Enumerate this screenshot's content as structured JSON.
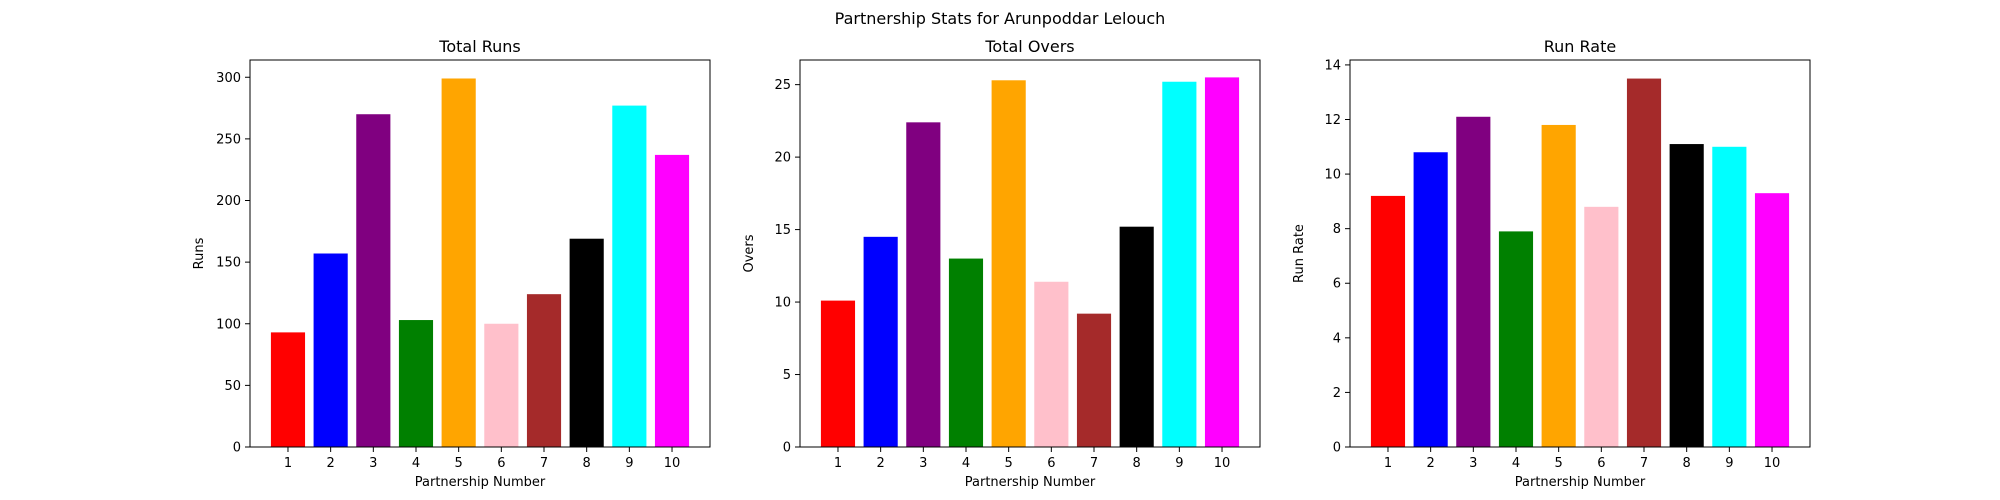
{
  "figure": {
    "suptitle": "Partnership Stats for Arunpoddar Lelouch"
  },
  "chart_data": [
    {
      "type": "bar",
      "title": "Total Runs",
      "xlabel": "Partnership Number",
      "ylabel": "Runs",
      "categories": [
        "1",
        "2",
        "3",
        "4",
        "5",
        "6",
        "7",
        "8",
        "9",
        "10"
      ],
      "values": [
        93,
        157,
        270,
        103,
        299,
        100,
        124,
        169,
        277,
        237
      ],
      "colors": [
        "#ff0000",
        "#0000ff",
        "#800080",
        "#008000",
        "#ffa500",
        "#ffc0cb",
        "#a52a2a",
        "#000000",
        "#00ffff",
        "#ff00ff"
      ],
      "ylim": [
        0,
        314
      ],
      "yticks": [
        0,
        50,
        100,
        150,
        200,
        250,
        300
      ],
      "grid": false
    },
    {
      "type": "bar",
      "title": "Total Overs",
      "xlabel": "Partnership Number",
      "ylabel": "Overs",
      "categories": [
        "1",
        "2",
        "3",
        "4",
        "5",
        "6",
        "7",
        "8",
        "9",
        "10"
      ],
      "values": [
        10.1,
        14.5,
        22.4,
        13.0,
        25.3,
        11.4,
        9.2,
        15.2,
        25.2,
        25.5
      ],
      "colors": [
        "#ff0000",
        "#0000ff",
        "#800080",
        "#008000",
        "#ffa500",
        "#ffc0cb",
        "#a52a2a",
        "#000000",
        "#00ffff",
        "#ff00ff"
      ],
      "ylim": [
        0,
        26.7
      ],
      "yticks": [
        0,
        5,
        10,
        15,
        20,
        25
      ],
      "grid": false
    },
    {
      "type": "bar",
      "title": "Run Rate",
      "xlabel": "Partnership Number",
      "ylabel": "Run Rate",
      "categories": [
        "1",
        "2",
        "3",
        "4",
        "5",
        "6",
        "7",
        "8",
        "9",
        "10"
      ],
      "values": [
        9.2,
        10.8,
        12.1,
        7.9,
        11.8,
        8.8,
        13.5,
        11.1,
        11.0,
        9.3
      ],
      "colors": [
        "#ff0000",
        "#0000ff",
        "#800080",
        "#008000",
        "#ffa500",
        "#ffc0cb",
        "#a52a2a",
        "#000000",
        "#00ffff",
        "#ff00ff"
      ],
      "ylim": [
        0,
        14.18
      ],
      "yticks": [
        0,
        2,
        4,
        6,
        8,
        10,
        12,
        14
      ],
      "grid": false
    }
  ]
}
